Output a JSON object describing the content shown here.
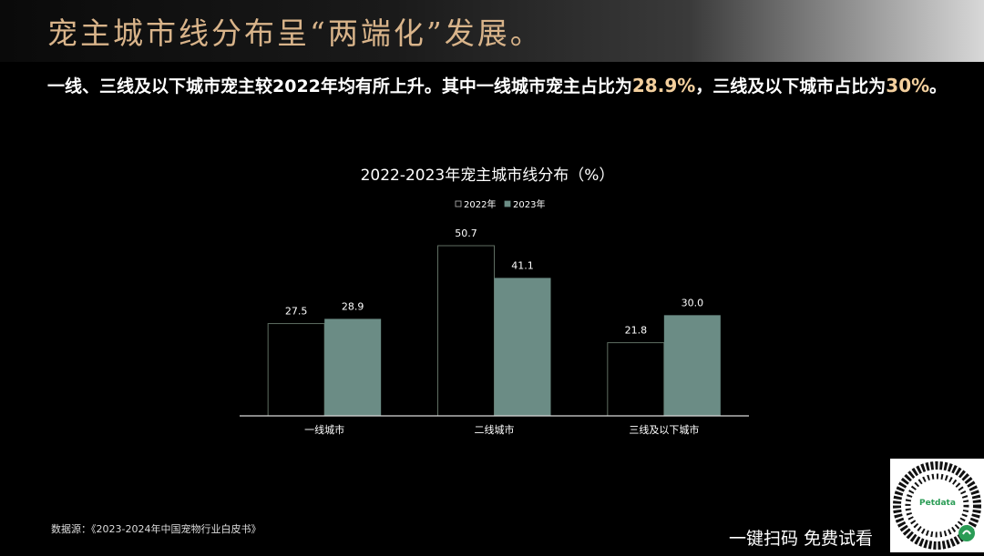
{
  "header": {
    "title": "宠主城市线分布呈“两端化”发展。"
  },
  "summary": {
    "part1": "一线、三线及以下城市宠主较2022年均有所上升。其中一线城市宠主占比为",
    "hl1": "28.9%",
    "part2": "，三线及以下城市占比为",
    "hl2": "30%",
    "part3": "。"
  },
  "chart_data": {
    "type": "bar",
    "title": "2022-2023年宠主城市线分布（%）",
    "categories": [
      "一线城市",
      "二线城市",
      "三线及以下城市"
    ],
    "series": [
      {
        "name": "2022年",
        "values": [
          27.5,
          50.7,
          21.8
        ],
        "labels": [
          "27.5",
          "50.7",
          "21.8"
        ]
      },
      {
        "name": "2023年",
        "values": [
          28.9,
          41.1,
          30.0
        ],
        "labels": [
          "28.9",
          "41.1",
          "30.0"
        ]
      }
    ],
    "ylim": [
      0,
      50.7
    ],
    "legend_position": "top",
    "grid": false,
    "colors": {
      "series_2022_fill": "#000000",
      "series_2022_stroke": "#5f6e62",
      "series_2023_fill": "#6b8c85",
      "axis": "#d9d9d9"
    }
  },
  "footer": {
    "source": "数据源：《2023-2024年中国宠物行业白皮书》",
    "cta": "一键扫码 免费试看",
    "qr_logo": "Petdata"
  }
}
